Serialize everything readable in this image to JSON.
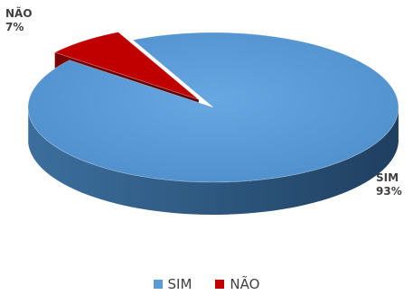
{
  "chart_data": {
    "type": "pie",
    "style": "3d",
    "slices": [
      {
        "name": "SIM",
        "percent_label": "93%",
        "value": 93,
        "color": "#5b9bd5"
      },
      {
        "name": "NÃO",
        "percent_label": "7%",
        "value": 7,
        "color": "#c00000"
      }
    ],
    "legend": {
      "placement": "bottom",
      "items": [
        {
          "label": "SIM",
          "color": "#5b9bd5"
        },
        {
          "label": "NÃO",
          "color": "#c00000"
        }
      ]
    }
  }
}
